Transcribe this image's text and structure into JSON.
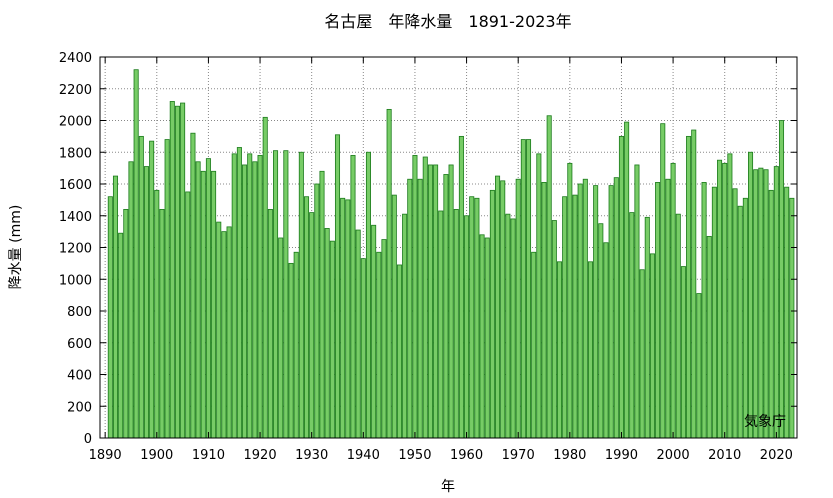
{
  "chart_data": {
    "type": "bar",
    "title": "名古屋　年降水量　1891-2023年",
    "xlabel": "年",
    "ylabel": "降水量 (mm)",
    "source_note": "気象庁",
    "xlim": [
      1889,
      2024
    ],
    "ylim": [
      0,
      2400
    ],
    "grid": true,
    "bar_color": "#77cc66",
    "bar_edge_color": "#1a7a1a",
    "x_ticks": [
      1890,
      1900,
      1910,
      1920,
      1930,
      1940,
      1950,
      1960,
      1970,
      1980,
      1990,
      2000,
      2010,
      2020
    ],
    "y_ticks": [
      0,
      200,
      400,
      600,
      800,
      1000,
      1200,
      1400,
      1600,
      1800,
      2000,
      2200,
      2400
    ],
    "x": [
      1891,
      1892,
      1893,
      1894,
      1895,
      1896,
      1897,
      1898,
      1899,
      1900,
      1901,
      1902,
      1903,
      1904,
      1905,
      1906,
      1907,
      1908,
      1909,
      1910,
      1911,
      1912,
      1913,
      1914,
      1915,
      1916,
      1917,
      1918,
      1919,
      1920,
      1921,
      1922,
      1923,
      1924,
      1925,
      1926,
      1927,
      1928,
      1929,
      1930,
      1931,
      1932,
      1933,
      1934,
      1935,
      1936,
      1937,
      1938,
      1939,
      1940,
      1941,
      1942,
      1943,
      1944,
      1945,
      1946,
      1947,
      1948,
      1949,
      1950,
      1951,
      1952,
      1953,
      1954,
      1955,
      1956,
      1957,
      1958,
      1959,
      1960,
      1961,
      1962,
      1963,
      1964,
      1965,
      1966,
      1967,
      1968,
      1969,
      1970,
      1971,
      1972,
      1973,
      1974,
      1975,
      1976,
      1977,
      1978,
      1979,
      1980,
      1981,
      1982,
      1983,
      1984,
      1985,
      1986,
      1987,
      1988,
      1989,
      1990,
      1991,
      1992,
      1993,
      1994,
      1995,
      1996,
      1997,
      1998,
      1999,
      2000,
      2001,
      2002,
      2003,
      2004,
      2005,
      2006,
      2007,
      2008,
      2009,
      2010,
      2011,
      2012,
      2013,
      2014,
      2015,
      2016,
      2017,
      2018,
      2019,
      2020,
      2021,
      2022,
      2023
    ],
    "values": [
      1520,
      1650,
      1290,
      1440,
      1740,
      2320,
      1900,
      1710,
      1870,
      1560,
      1440,
      1880,
      2120,
      2090,
      2110,
      1550,
      1920,
      1740,
      1680,
      1760,
      1680,
      1360,
      1300,
      1330,
      1790,
      1830,
      1720,
      1790,
      1740,
      1780,
      2020,
      1440,
      1810,
      1260,
      1810,
      1100,
      1170,
      1800,
      1520,
      1420,
      1600,
      1680,
      1320,
      1240,
      1910,
      1510,
      1500,
      1780,
      1310,
      1130,
      1800,
      1340,
      1170,
      1250,
      2070,
      1530,
      1090,
      1410,
      1630,
      1780,
      1630,
      1770,
      1720,
      1720,
      1430,
      1660,
      1720,
      1440,
      1900,
      1400,
      1520,
      1510,
      1280,
      1260,
      1560,
      1650,
      1620,
      1410,
      1380,
      1630,
      1880,
      1880,
      1170,
      1790,
      1610,
      2030,
      1370,
      1110,
      1520,
      1730,
      1530,
      1600,
      1630,
      1110,
      1590,
      1350,
      1230,
      1590,
      1640,
      1900,
      1990,
      1420,
      1720,
      1060,
      1390,
      1160,
      1610,
      1980,
      1630,
      1730,
      1410,
      1080,
      1900,
      1940,
      910,
      1610,
      1270,
      1580,
      1750,
      1730,
      1790,
      1570,
      1460,
      1510,
      1800,
      1690,
      1700,
      1690,
      1560,
      1710,
      2000,
      1580,
      1510
    ]
  }
}
